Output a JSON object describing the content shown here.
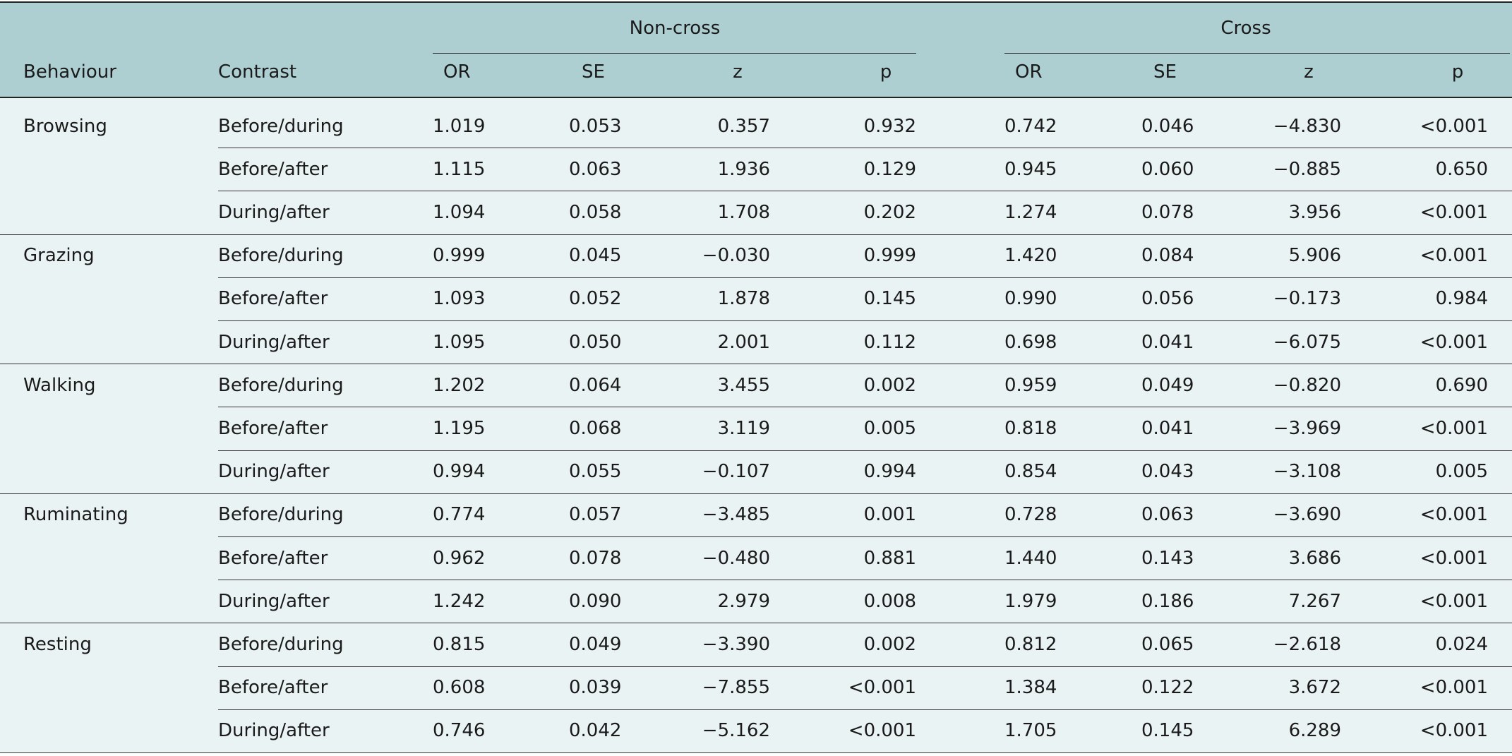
{
  "table": {
    "groups": [
      "Non-cross",
      "Cross"
    ],
    "columns": [
      "Behaviour",
      "Contrast",
      "OR",
      "SE",
      "z",
      "p",
      "OR",
      "SE",
      "z",
      "p"
    ],
    "sections": [
      {
        "behaviour": "Browsing",
        "rows": [
          [
            "Before/during",
            "1.019",
            "0.053",
            "0.357",
            "0.932",
            "0.742",
            "0.046",
            "−4.830",
            "<0.001"
          ],
          [
            "Before/after",
            "1.115",
            "0.063",
            "1.936",
            "0.129",
            "0.945",
            "0.060",
            "−0.885",
            "0.650"
          ],
          [
            "During/after",
            "1.094",
            "0.058",
            "1.708",
            "0.202",
            "1.274",
            "0.078",
            "3.956",
            "<0.001"
          ]
        ]
      },
      {
        "behaviour": "Grazing",
        "rows": [
          [
            "Before/during",
            "0.999",
            "0.045",
            "−0.030",
            "0.999",
            "1.420",
            "0.084",
            "5.906",
            "<0.001"
          ],
          [
            "Before/after",
            "1.093",
            "0.052",
            "1.878",
            "0.145",
            "0.990",
            "0.056",
            "−0.173",
            "0.984"
          ],
          [
            "During/after",
            "1.095",
            "0.050",
            "2.001",
            "0.112",
            "0.698",
            "0.041",
            "−6.075",
            "<0.001"
          ]
        ]
      },
      {
        "behaviour": "Walking",
        "rows": [
          [
            "Before/during",
            "1.202",
            "0.064",
            "3.455",
            "0.002",
            "0.959",
            "0.049",
            "−0.820",
            "0.690"
          ],
          [
            "Before/after",
            "1.195",
            "0.068",
            "3.119",
            "0.005",
            "0.818",
            "0.041",
            "−3.969",
            "<0.001"
          ],
          [
            "During/after",
            "0.994",
            "0.055",
            "−0.107",
            "0.994",
            "0.854",
            "0.043",
            "−3.108",
            "0.005"
          ]
        ]
      },
      {
        "behaviour": "Ruminating",
        "rows": [
          [
            "Before/during",
            "0.774",
            "0.057",
            "−3.485",
            "0.001",
            "0.728",
            "0.063",
            "−3.690",
            "<0.001"
          ],
          [
            "Before/after",
            "0.962",
            "0.078",
            "−0.480",
            "0.881",
            "1.440",
            "0.143",
            "3.686",
            "<0.001"
          ],
          [
            "During/after",
            "1.242",
            "0.090",
            "2.979",
            "0.008",
            "1.979",
            "0.186",
            "7.267",
            "<0.001"
          ]
        ]
      },
      {
        "behaviour": "Resting",
        "rows": [
          [
            "Before/during",
            "0.815",
            "0.049",
            "−3.390",
            "0.002",
            "0.812",
            "0.065",
            "−2.618",
            "0.024"
          ],
          [
            "Before/after",
            "0.608",
            "0.039",
            "−7.855",
            "<0.001",
            "1.384",
            "0.122",
            "3.672",
            "<0.001"
          ],
          [
            "During/after",
            "0.746",
            "0.042",
            "−5.162",
            "<0.001",
            "1.705",
            "0.145",
            "6.289",
            "<0.001"
          ]
        ]
      }
    ]
  }
}
